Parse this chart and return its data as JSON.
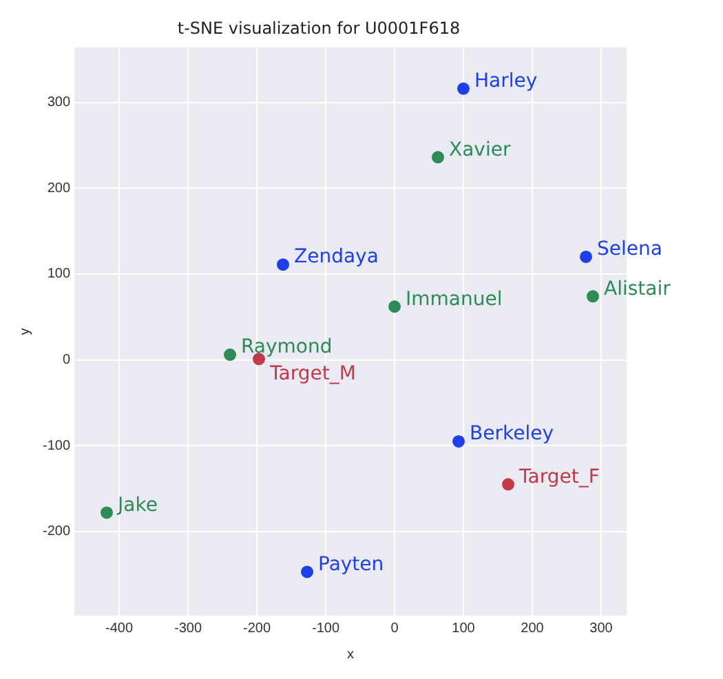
{
  "chart_data": {
    "type": "scatter",
    "title": "t-SNE visualization for U0001F618",
    "xlabel": "x",
    "ylabel": "y",
    "xlim": [
      -465,
      337
    ],
    "ylim": [
      -298,
      364
    ],
    "xticks": [
      -400,
      -300,
      -200,
      -100,
      0,
      100,
      200,
      300
    ],
    "yticks": [
      -200,
      -100,
      0,
      100,
      200,
      300
    ],
    "grid": true,
    "legend": false,
    "marker": "circle",
    "series": [
      {
        "name": "Harley",
        "color": "#1f3fe8",
        "x": [
          100
        ],
        "values": [
          316
        ]
      },
      {
        "name": "Xavier",
        "color": "#2e8b57",
        "x": [
          63
        ],
        "values": [
          236
        ]
      },
      {
        "name": "Zendaya",
        "color": "#1f3fe8",
        "x": [
          -162
        ],
        "values": [
          111
        ]
      },
      {
        "name": "Selena",
        "color": "#1f3fe8",
        "x": [
          278
        ],
        "values": [
          120
        ]
      },
      {
        "name": "Alistair",
        "color": "#2e8b57",
        "x": [
          288
        ],
        "values": [
          74
        ]
      },
      {
        "name": "Immanuel",
        "color": "#2e8b57",
        "x": [
          0
        ],
        "values": [
          62
        ]
      },
      {
        "name": "Raymond",
        "color": "#2e8b57",
        "x": [
          -239
        ],
        "values": [
          6
        ]
      },
      {
        "name": "Target_M",
        "color": "#c03a4a",
        "x": [
          -197
        ],
        "values": [
          1
        ]
      },
      {
        "name": "Berkeley",
        "color": "#1f3fe8",
        "x": [
          93
        ],
        "values": [
          -95
        ]
      },
      {
        "name": "Target_F",
        "color": "#c03a4a",
        "x": [
          165
        ],
        "values": [
          -145
        ]
      },
      {
        "name": "Jake",
        "color": "#2e8b57",
        "x": [
          -418
        ],
        "values": [
          -178
        ]
      },
      {
        "name": "Payten",
        "color": "#1f3fe8",
        "x": [
          -127
        ],
        "values": [
          -247
        ]
      }
    ]
  }
}
